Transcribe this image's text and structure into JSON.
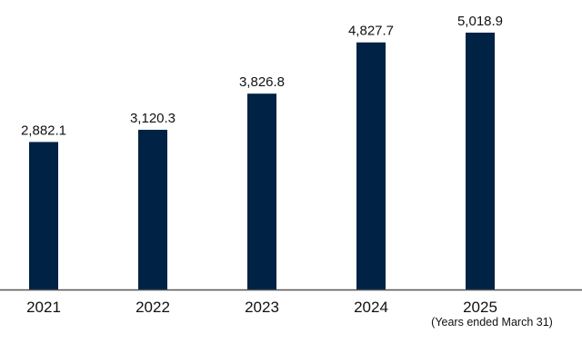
{
  "chart_data": {
    "type": "bar",
    "categories": [
      "2021",
      "2022",
      "2023",
      "2024",
      "2025"
    ],
    "values": [
      2882.1,
      3120.3,
      3826.8,
      4827.7,
      5018.9
    ],
    "value_labels": [
      "2,882.1",
      "3,120.3",
      "3,826.8",
      "4,827.7",
      "5,018.9"
    ],
    "title": "",
    "xlabel": "",
    "ylabel": "",
    "x_note": "(Years ended March 31)",
    "ylim": [
      0,
      5550
    ],
    "grid": false,
    "legend": "none",
    "colors": {
      "bar": "#002244",
      "axis": "#555555",
      "text": "#111111"
    }
  }
}
